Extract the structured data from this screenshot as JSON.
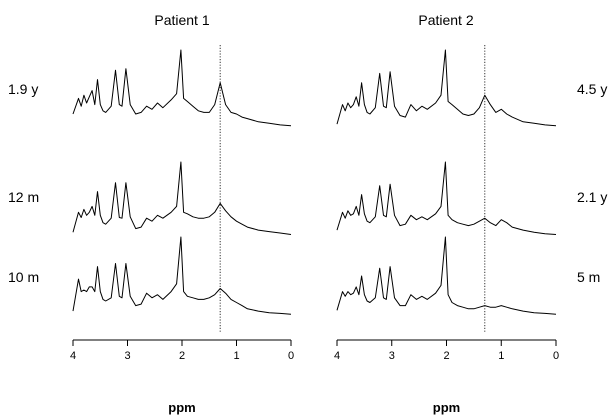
{
  "chart_data": [
    {
      "type": "line",
      "title": "Patient 1",
      "xlabel": "ppm",
      "x_ticks": [
        "4",
        "3",
        "2",
        "1",
        "0"
      ],
      "xlim": [
        4,
        0
      ],
      "x_reversed": true,
      "marker_ppm": 1.3,
      "series": [
        {
          "label": "1.9 y",
          "x": [
            4.0,
            3.9,
            3.85,
            3.8,
            3.75,
            3.7,
            3.65,
            3.6,
            3.55,
            3.5,
            3.45,
            3.4,
            3.3,
            3.22,
            3.15,
            3.1,
            3.03,
            2.95,
            2.85,
            2.75,
            2.65,
            2.55,
            2.45,
            2.35,
            2.2,
            2.1,
            2.02,
            1.97,
            1.9,
            1.8,
            1.7,
            1.6,
            1.5,
            1.4,
            1.3,
            1.2,
            1.1,
            1.0,
            0.9,
            0.8,
            0.6,
            0.4,
            0.2,
            0.0
          ],
          "y": [
            0.18,
            0.38,
            0.28,
            0.42,
            0.32,
            0.4,
            0.48,
            0.3,
            0.62,
            0.3,
            0.22,
            0.2,
            0.28,
            0.74,
            0.3,
            0.28,
            0.76,
            0.3,
            0.18,
            0.2,
            0.28,
            0.24,
            0.32,
            0.26,
            0.36,
            0.44,
            1.0,
            0.38,
            0.34,
            0.28,
            0.22,
            0.2,
            0.2,
            0.3,
            0.58,
            0.3,
            0.2,
            0.18,
            0.14,
            0.12,
            0.08,
            0.06,
            0.04,
            0.03
          ]
        },
        {
          "label": "12 m",
          "x": [
            4.0,
            3.9,
            3.85,
            3.8,
            3.75,
            3.7,
            3.65,
            3.6,
            3.55,
            3.5,
            3.45,
            3.4,
            3.3,
            3.22,
            3.15,
            3.1,
            3.03,
            2.95,
            2.85,
            2.75,
            2.65,
            2.55,
            2.45,
            2.35,
            2.2,
            2.1,
            2.02,
            1.97,
            1.9,
            1.8,
            1.7,
            1.6,
            1.5,
            1.4,
            1.3,
            1.2,
            1.1,
            1.0,
            0.9,
            0.8,
            0.6,
            0.4,
            0.2,
            0.0
          ],
          "y": [
            0.05,
            0.32,
            0.25,
            0.36,
            0.28,
            0.32,
            0.4,
            0.28,
            0.6,
            0.28,
            0.18,
            0.16,
            0.24,
            0.72,
            0.25,
            0.24,
            0.72,
            0.26,
            0.1,
            0.12,
            0.24,
            0.2,
            0.28,
            0.24,
            0.32,
            0.4,
            1.0,
            0.32,
            0.3,
            0.26,
            0.24,
            0.24,
            0.26,
            0.32,
            0.44,
            0.34,
            0.26,
            0.2,
            0.16,
            0.12,
            0.08,
            0.06,
            0.04,
            0.02
          ]
        },
        {
          "label": "10 m",
          "x": [
            4.0,
            3.9,
            3.85,
            3.8,
            3.75,
            3.7,
            3.65,
            3.6,
            3.55,
            3.5,
            3.45,
            3.4,
            3.3,
            3.22,
            3.15,
            3.1,
            3.03,
            2.95,
            2.85,
            2.75,
            2.65,
            2.55,
            2.45,
            2.35,
            2.2,
            2.1,
            2.02,
            1.97,
            1.9,
            1.8,
            1.7,
            1.6,
            1.5,
            1.4,
            1.3,
            1.2,
            1.1,
            1.0,
            0.9,
            0.8,
            0.6,
            0.4,
            0.2,
            0.0
          ],
          "y": [
            0.05,
            0.46,
            0.3,
            0.32,
            0.3,
            0.36,
            0.36,
            0.3,
            0.62,
            0.3,
            0.2,
            0.18,
            0.22,
            0.66,
            0.24,
            0.22,
            0.66,
            0.24,
            0.12,
            0.14,
            0.28,
            0.22,
            0.26,
            0.2,
            0.3,
            0.4,
            1.0,
            0.3,
            0.24,
            0.22,
            0.2,
            0.2,
            0.22,
            0.26,
            0.34,
            0.28,
            0.2,
            0.16,
            0.12,
            0.08,
            0.05,
            0.03,
            0.02,
            0.01
          ]
        }
      ]
    },
    {
      "type": "line",
      "title": "Patient 2",
      "xlabel": "ppm",
      "x_ticks": [
        "4",
        "3",
        "2",
        "1",
        "0"
      ],
      "xlim": [
        4,
        0
      ],
      "x_reversed": true,
      "marker_ppm": 1.3,
      "series": [
        {
          "label": "4.5 y",
          "x": [
            4.0,
            3.9,
            3.85,
            3.8,
            3.75,
            3.7,
            3.65,
            3.6,
            3.55,
            3.5,
            3.45,
            3.4,
            3.3,
            3.22,
            3.15,
            3.1,
            3.03,
            2.95,
            2.85,
            2.75,
            2.65,
            2.55,
            2.45,
            2.35,
            2.2,
            2.1,
            2.02,
            1.97,
            1.9,
            1.8,
            1.7,
            1.6,
            1.5,
            1.4,
            1.3,
            1.2,
            1.1,
            1.0,
            0.9,
            0.8,
            0.6,
            0.4,
            0.2,
            0.0
          ],
          "y": [
            0.05,
            0.3,
            0.22,
            0.32,
            0.26,
            0.3,
            0.4,
            0.28,
            0.58,
            0.3,
            0.2,
            0.18,
            0.26,
            0.7,
            0.28,
            0.26,
            0.72,
            0.28,
            0.16,
            0.14,
            0.3,
            0.22,
            0.28,
            0.24,
            0.32,
            0.42,
            1.0,
            0.34,
            0.3,
            0.24,
            0.18,
            0.16,
            0.18,
            0.26,
            0.42,
            0.3,
            0.2,
            0.24,
            0.18,
            0.14,
            0.08,
            0.06,
            0.04,
            0.03
          ]
        },
        {
          "label": "2.1 y",
          "x": [
            4.0,
            3.9,
            3.85,
            3.8,
            3.75,
            3.7,
            3.65,
            3.6,
            3.55,
            3.5,
            3.45,
            3.4,
            3.3,
            3.22,
            3.15,
            3.1,
            3.03,
            2.95,
            2.85,
            2.75,
            2.65,
            2.55,
            2.45,
            2.35,
            2.2,
            2.1,
            2.02,
            1.97,
            1.9,
            1.8,
            1.7,
            1.6,
            1.5,
            1.4,
            1.3,
            1.2,
            1.1,
            1.0,
            0.9,
            0.8,
            0.6,
            0.4,
            0.2,
            0.0
          ],
          "y": [
            0.08,
            0.32,
            0.24,
            0.34,
            0.28,
            0.3,
            0.4,
            0.28,
            0.56,
            0.3,
            0.2,
            0.18,
            0.26,
            0.68,
            0.28,
            0.26,
            0.7,
            0.28,
            0.14,
            0.16,
            0.28,
            0.22,
            0.26,
            0.22,
            0.3,
            0.4,
            1.0,
            0.28,
            0.22,
            0.18,
            0.16,
            0.14,
            0.16,
            0.2,
            0.24,
            0.18,
            0.14,
            0.22,
            0.18,
            0.12,
            0.08,
            0.05,
            0.03,
            0.02
          ]
        },
        {
          "label": "5 m",
          "x": [
            4.0,
            3.9,
            3.85,
            3.8,
            3.75,
            3.7,
            3.65,
            3.6,
            3.55,
            3.5,
            3.45,
            3.4,
            3.3,
            3.22,
            3.15,
            3.1,
            3.03,
            2.95,
            2.85,
            2.75,
            2.65,
            2.55,
            2.45,
            2.35,
            2.2,
            2.1,
            2.02,
            1.97,
            1.9,
            1.8,
            1.7,
            1.6,
            1.5,
            1.4,
            1.3,
            1.2,
            1.1,
            1.0,
            0.9,
            0.8,
            0.6,
            0.4,
            0.2,
            0.0
          ],
          "y": [
            0.06,
            0.3,
            0.24,
            0.3,
            0.26,
            0.28,
            0.36,
            0.26,
            0.5,
            0.26,
            0.18,
            0.16,
            0.22,
            0.6,
            0.22,
            0.2,
            0.62,
            0.22,
            0.12,
            0.12,
            0.26,
            0.2,
            0.24,
            0.2,
            0.28,
            0.38,
            1.0,
            0.26,
            0.16,
            0.12,
            0.1,
            0.08,
            0.08,
            0.1,
            0.12,
            0.1,
            0.1,
            0.12,
            0.1,
            0.08,
            0.05,
            0.03,
            0.02,
            0.01
          ]
        }
      ]
    }
  ]
}
